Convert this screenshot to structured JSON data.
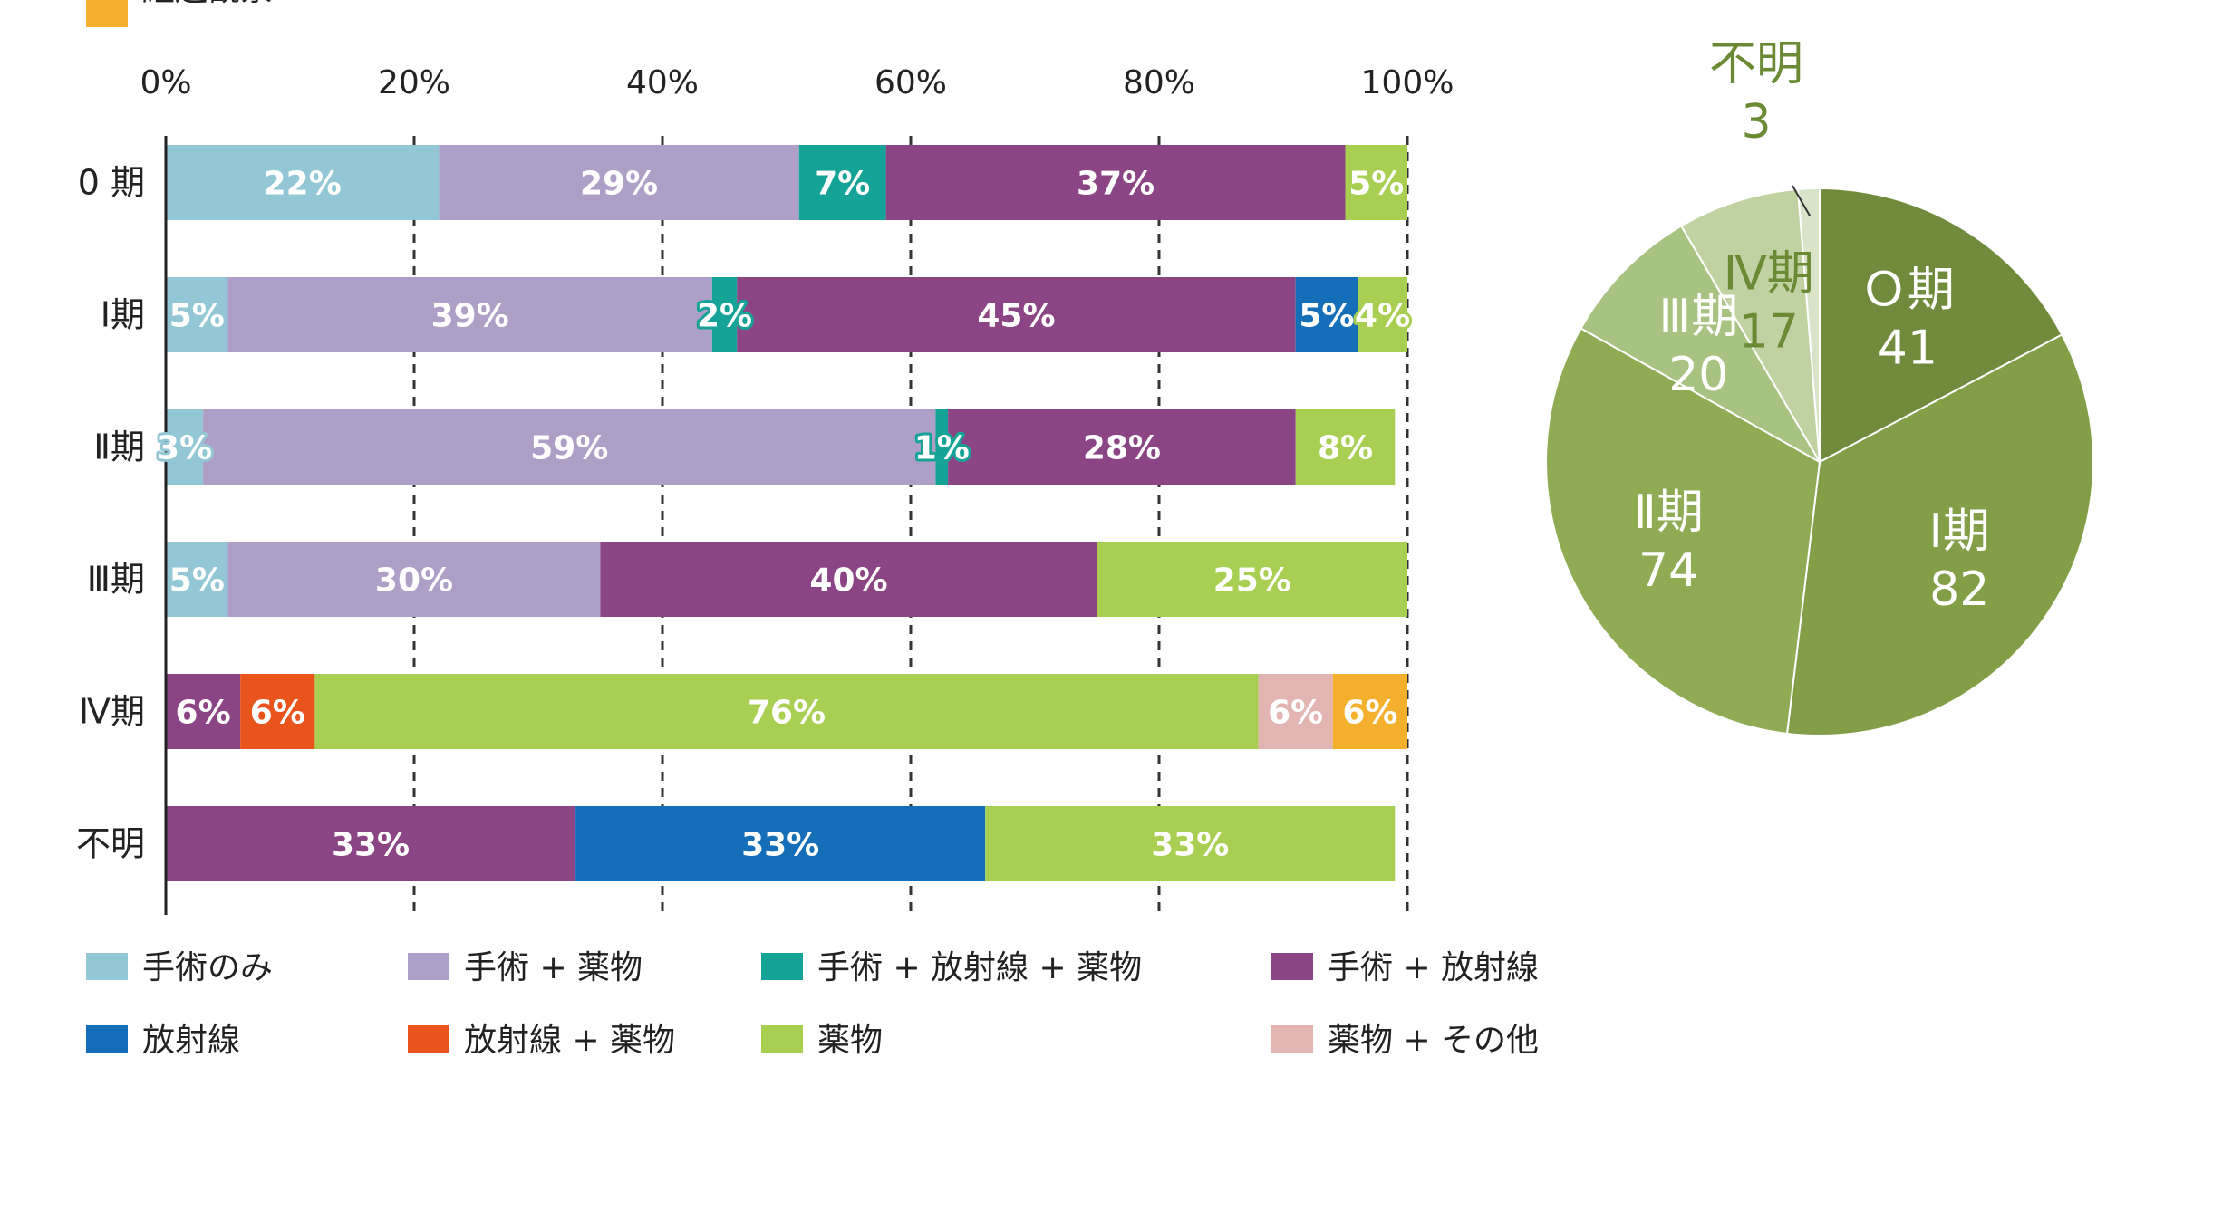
{
  "chart_data": [
    {
      "type": "bar",
      "orientation": "horizontal",
      "stacked": true,
      "x_ticks": [
        "0%",
        "20%",
        "40%",
        "60%",
        "80%",
        "100%"
      ],
      "xlim": [
        0,
        100
      ],
      "grid": "vertical dashed",
      "categories": [
        "0 期",
        "Ⅰ期",
        "Ⅱ期",
        "Ⅲ期",
        "Ⅳ期",
        "不明"
      ],
      "series": [
        {
          "name": "手術のみ",
          "color": "#94c7d6",
          "values": [
            22,
            5,
            3,
            5,
            0,
            0
          ]
        },
        {
          "name": "手術 + 薬物",
          "color": "#ae9fc7",
          "values": [
            29,
            39,
            59,
            30,
            0,
            0
          ]
        },
        {
          "name": "手術 + 放射線 + 薬物",
          "color": "#14a396",
          "values": [
            7,
            2,
            1,
            0,
            0,
            0
          ]
        },
        {
          "name": "手術 + 放射線",
          "color": "#8b4585",
          "values": [
            37,
            45,
            28,
            40,
            6,
            33
          ]
        },
        {
          "name": "放射線",
          "color": "#146fb8",
          "values": [
            0,
            5,
            0,
            0,
            0,
            33
          ]
        },
        {
          "name": "放射線 + 薬物",
          "color": "#e8541c",
          "values": [
            0,
            0,
            0,
            0,
            6,
            0
          ]
        },
        {
          "name": "薬物",
          "color": "#a8cf52",
          "values": [
            5,
            4,
            8,
            25,
            76,
            33
          ]
        },
        {
          "name": "薬物 + その他",
          "color": "#e3b5b2",
          "values": [
            0,
            0,
            0,
            0,
            6,
            0
          ]
        },
        {
          "name": "経過観察",
          "color": "#f4b02d",
          "values": [
            0,
            0,
            0,
            0,
            6,
            0
          ]
        }
      ],
      "value_suffix": "%",
      "legend": "bottom"
    },
    {
      "type": "pie",
      "slices": [
        {
          "label": "Ｏ期",
          "value": 41,
          "color": "#718b3c",
          "text_color": "#ffffff"
        },
        {
          "label": "Ⅰ期",
          "value": 82,
          "color": "#829f48",
          "text_color": "#ffffff"
        },
        {
          "label": "Ⅱ期",
          "value": 74,
          "color": "#8fac55",
          "text_color": "#ffffff"
        },
        {
          "label": "Ⅲ期",
          "value": 20,
          "color": "#a8c282",
          "text_color": "#ffffff"
        },
        {
          "label": "Ⅳ期",
          "value": 17,
          "color": "#c0d1a2",
          "text_color": "#6a8a34"
        },
        {
          "label": "不明",
          "value": 3,
          "color": "#d9e3c8",
          "text_color": "#6a8a34"
        }
      ]
    }
  ]
}
